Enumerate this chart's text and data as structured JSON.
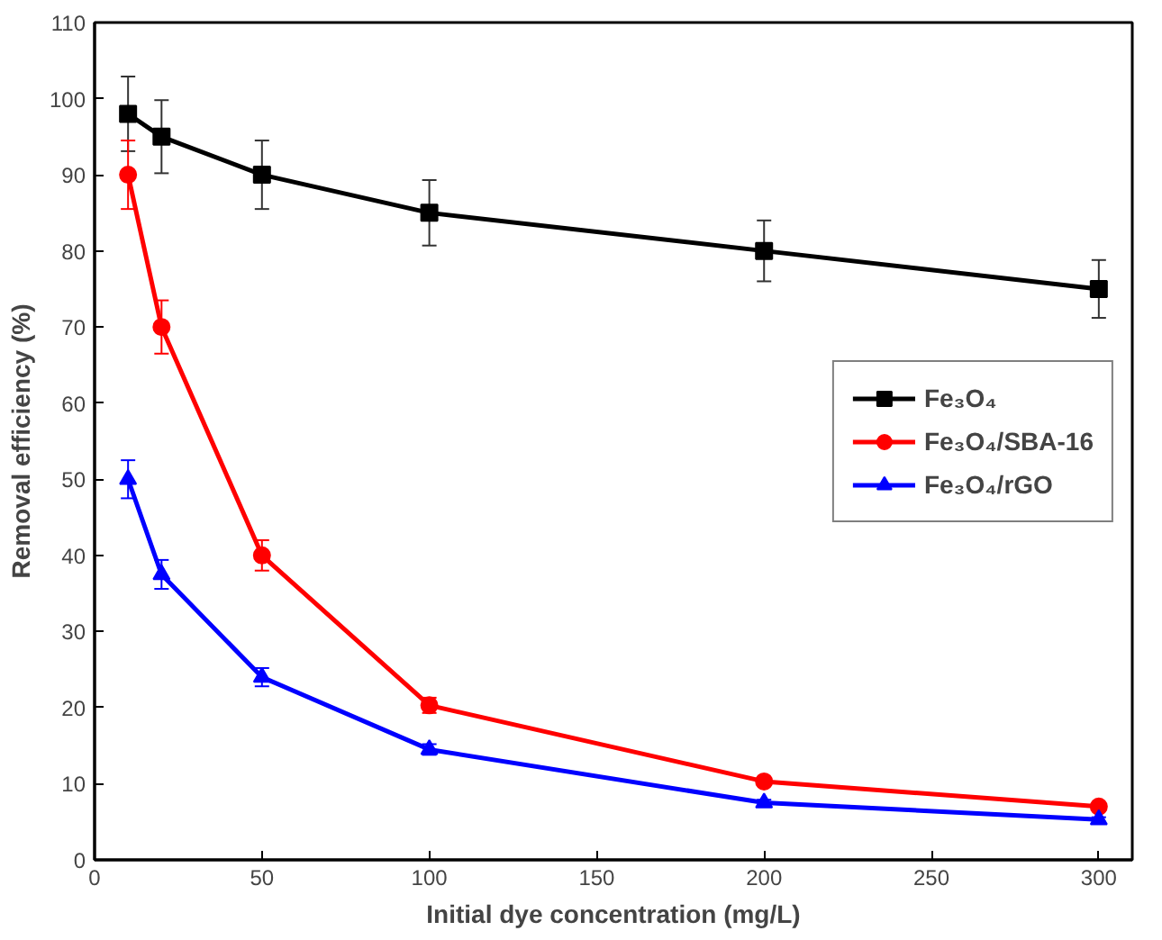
{
  "chart_data": {
    "type": "line",
    "xlabel": "Initial dye concentration (mg/L)",
    "ylabel": "Removal efficiency (%)",
    "x": [
      10,
      20,
      50,
      100,
      200,
      300
    ],
    "xlim": [
      0,
      310
    ],
    "xticks": [
      0,
      50,
      100,
      150,
      200,
      250,
      300
    ],
    "ylim": [
      0,
      110
    ],
    "yticks": [
      0,
      10,
      20,
      30,
      40,
      50,
      60,
      70,
      80,
      90,
      100,
      110
    ],
    "grid": false,
    "legend": "right",
    "line_style": "solid",
    "series": [
      {
        "name": "Fe₃O₄",
        "color": "#000000",
        "marker": "square",
        "values": [
          98,
          95,
          90,
          85,
          80,
          75
        ],
        "errors": [
          4.9,
          4.8,
          4.5,
          4.3,
          4,
          3.8
        ]
      },
      {
        "name": "Fe₃O₄/SBA-16",
        "color": "#ff0000",
        "marker": "circle",
        "values": [
          90,
          70,
          40,
          20.3,
          10.3,
          7
        ],
        "errors": [
          4.5,
          3.5,
          2,
          1,
          0.5,
          0.4
        ]
      },
      {
        "name": "Fe₃O₄/rGO",
        "color": "#0000ff",
        "marker": "triangle",
        "values": [
          50,
          37.5,
          24,
          14.5,
          7.5,
          5.3
        ],
        "errors": [
          2.5,
          1.9,
          1.2,
          0.7,
          0.4,
          0.3
        ]
      }
    ]
  }
}
